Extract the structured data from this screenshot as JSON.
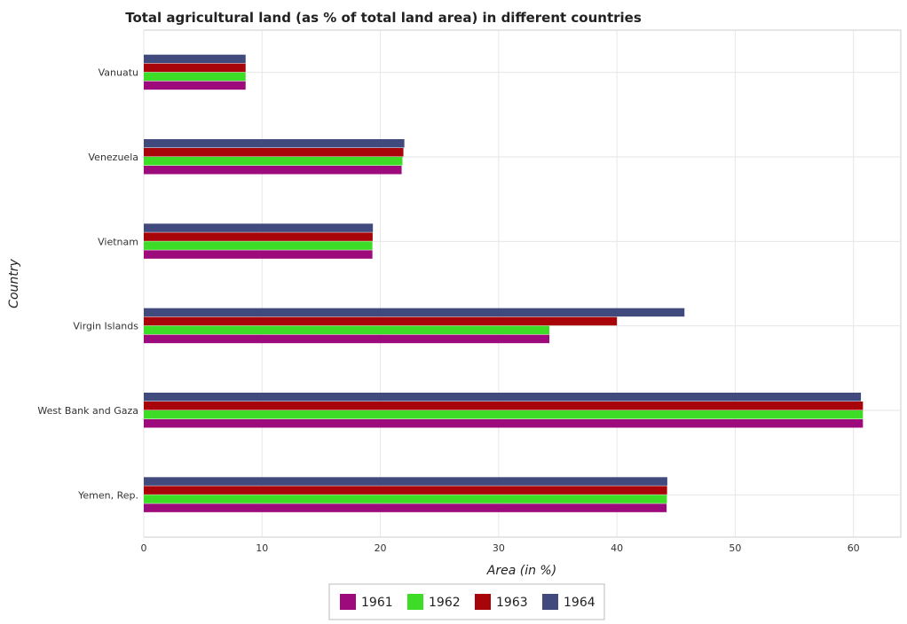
{
  "chart_data": {
    "type": "bar",
    "orientation": "horizontal",
    "title": "Total agricultural land (as % of total land area) in different countries",
    "xlabel": "Area (in %)",
    "ylabel": "Country",
    "xlim": [
      0,
      64
    ],
    "xticks": [
      0,
      10,
      20,
      30,
      40,
      50,
      60
    ],
    "categories": [
      "Vanuatu",
      "Venezuela",
      "Vietnam",
      "Virgin Islands",
      "West Bank and Gaza",
      "Yemen, Rep."
    ],
    "series": [
      {
        "name": "1961",
        "color": "#9c0a7c",
        "values": [
          8.61,
          21.8,
          19.33,
          34.29,
          60.8,
          44.2
        ]
      },
      {
        "name": "1962",
        "color": "#3ddc26",
        "values": [
          8.61,
          21.87,
          19.33,
          34.29,
          60.8,
          44.22
        ]
      },
      {
        "name": "1963",
        "color": "#a8050a",
        "values": [
          8.61,
          21.95,
          19.35,
          40.0,
          60.8,
          44.24
        ]
      },
      {
        "name": "1964",
        "color": "#404a7c",
        "values": [
          8.61,
          22.03,
          19.37,
          45.71,
          60.63,
          44.26
        ]
      }
    ],
    "grid": true,
    "legend_position": "bottom-center"
  }
}
